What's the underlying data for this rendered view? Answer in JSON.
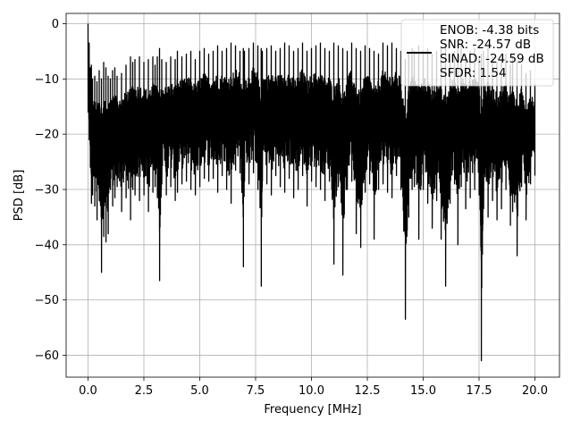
{
  "chart_data": {
    "type": "line",
    "title": "",
    "xlabel": "Frequency [MHz]",
    "ylabel": "PSD [dB]",
    "xlim": [
      -0.98,
      21.1
    ],
    "ylim": [
      -63.97,
      1.86
    ],
    "xticks": [
      0.0,
      2.5,
      5.0,
      7.5,
      10.0,
      12.5,
      15.0,
      17.5,
      20.0
    ],
    "xtick_labels": [
      "0.0",
      "2.5",
      "5.0",
      "7.5",
      "10.0",
      "12.5",
      "15.0",
      "17.5",
      "20.0"
    ],
    "yticks": [
      0,
      -10,
      -20,
      -30,
      -40,
      -50,
      -60
    ],
    "ytick_labels": [
      "0",
      "−10",
      "−20",
      "−30",
      "−40",
      "−50",
      "−60"
    ],
    "grid": true,
    "legend_position": "upper-right",
    "series": [
      {
        "color": "#000000",
        "x": [
          0.0,
          0.05,
          0.1,
          0.15,
          0.2,
          0.3,
          0.4,
          0.5,
          0.6,
          0.7,
          0.8,
          0.9,
          1.0,
          1.1,
          1.2,
          1.3,
          1.5,
          1.7,
          1.9,
          2.0,
          2.1,
          2.3,
          2.5,
          2.7,
          2.9,
          3.0,
          3.1,
          3.2,
          3.3,
          3.5,
          3.7,
          3.9,
          4.0,
          4.2,
          4.4,
          4.6,
          4.8,
          5.0,
          5.2,
          5.4,
          5.6,
          5.8,
          6.0,
          6.2,
          6.4,
          6.6,
          6.8,
          6.95,
          7.0,
          7.2,
          7.4,
          7.6,
          7.75,
          7.8,
          8.0,
          8.2,
          8.4,
          8.6,
          8.8,
          9.0,
          9.2,
          9.4,
          9.6,
          9.8,
          10.0,
          10.2,
          10.4,
          10.6,
          10.8,
          11.0,
          11.2,
          11.4,
          11.6,
          11.8,
          12.0,
          12.2,
          12.4,
          12.6,
          12.8,
          13.0,
          13.2,
          13.4,
          13.6,
          13.8,
          14.0,
          14.2,
          14.35,
          14.5,
          14.6,
          14.8,
          15.0,
          15.2,
          15.4,
          15.6,
          15.8,
          16.0,
          16.2,
          16.4,
          16.55,
          16.7,
          16.9,
          17.1,
          17.3,
          17.5,
          17.6,
          17.7,
          17.9,
          18.1,
          18.3,
          18.5,
          18.7,
          18.9,
          19.0,
          19.2,
          19.4,
          19.6,
          19.8,
          20.0
        ],
        "y_upper": [
          0.0,
          -3.5,
          -8.0,
          -7.5,
          -10.0,
          -9.5,
          -10.5,
          -8.5,
          -10.0,
          -7.0,
          -8.0,
          -9.5,
          -10.0,
          -8.5,
          -8.0,
          -9.5,
          -9.0,
          -7.5,
          -6.0,
          -7.0,
          -6.5,
          -6.0,
          -7.0,
          -6.5,
          -6.0,
          -7.5,
          -6.0,
          -4.5,
          -6.5,
          -7.0,
          -6.0,
          -6.5,
          -5.0,
          -6.0,
          -5.5,
          -5.0,
          -6.5,
          -5.0,
          -4.5,
          -5.5,
          -5.0,
          -4.0,
          -5.0,
          -4.5,
          -3.5,
          -4.0,
          -5.0,
          -4.5,
          -5.0,
          -4.5,
          -3.5,
          -4.0,
          -4.5,
          -5.0,
          -4.5,
          -4.0,
          -5.0,
          -4.5,
          -3.5,
          -4.0,
          -5.0,
          -4.5,
          -3.5,
          -5.0,
          -4.5,
          -4.0,
          -3.5,
          -4.5,
          -5.0,
          -3.5,
          -4.0,
          -4.5,
          -5.0,
          -3.5,
          -4.5,
          -5.0,
          -4.0,
          -4.5,
          -5.0,
          -5.5,
          -3.5,
          -4.0,
          -3.5,
          -4.5,
          -5.0,
          -6.5,
          -5.5,
          -4.5,
          -5.0,
          -4.0,
          -5.0,
          -4.5,
          -5.5,
          -5.0,
          -4.5,
          -4.0,
          -5.5,
          -5.0,
          -4.5,
          -4.0,
          -5.5,
          -5.0,
          -4.5,
          -6.0,
          -5.5,
          -5.0,
          -4.5,
          -6.0,
          -7.0,
          -6.5,
          -5.5,
          -7.5,
          -6.0,
          -7.0,
          -7.5,
          -9.0,
          -8.5,
          -11.0
        ],
        "y_lower": [
          -16.0,
          -21.0,
          -26.0,
          -32.5,
          -31.0,
          -33.0,
          -35.5,
          -32.0,
          -45.0,
          -38.5,
          -39.5,
          -38.0,
          -30.0,
          -33.0,
          -31.5,
          -29.5,
          -34.0,
          -31.5,
          -35.5,
          -30.0,
          -31.0,
          -32.0,
          -31.0,
          -34.0,
          -30.5,
          -29.5,
          -31.5,
          -46.5,
          -29.0,
          -31.0,
          -29.5,
          -32.0,
          -30.5,
          -29.0,
          -28.5,
          -30.0,
          -31.0,
          -29.5,
          -28.0,
          -28.5,
          -28.0,
          -30.5,
          -27.5,
          -30.0,
          -32.5,
          -26.5,
          -27.0,
          -44.0,
          -28.5,
          -29.0,
          -27.0,
          -30.0,
          -47.5,
          -28.5,
          -29.0,
          -31.0,
          -27.5,
          -29.5,
          -30.5,
          -28.0,
          -31.5,
          -30.0,
          -27.5,
          -33.0,
          -28.5,
          -29.5,
          -30.0,
          -32.0,
          -28.5,
          -43.5,
          -29.5,
          -45.5,
          -30.0,
          -28.5,
          -38.0,
          -40.5,
          -30.5,
          -29.0,
          -39.0,
          -30.0,
          -29.0,
          -30.5,
          -31.5,
          -27.5,
          -30.0,
          -53.5,
          -35.0,
          -30.0,
          -29.5,
          -39.0,
          -30.0,
          -32.5,
          -37.0,
          -32.0,
          -39.0,
          -47.5,
          -32.5,
          -29.0,
          -40.0,
          -29.5,
          -33.5,
          -31.5,
          -30.0,
          -31.0,
          -61.0,
          -33.5,
          -35.0,
          -32.0,
          -35.5,
          -33.5,
          -30.0,
          -36.5,
          -34.0,
          -42.0,
          -29.5,
          -35.5,
          -29.0,
          -27.5
        ]
      }
    ],
    "legend": {
      "lines": [
        "ENOB: -4.38 bits",
        "SNR: -24.57 dB",
        "SINAD: -24.59 dB",
        "SFDR: 1.54"
      ],
      "swatch_color": "#000000"
    }
  }
}
